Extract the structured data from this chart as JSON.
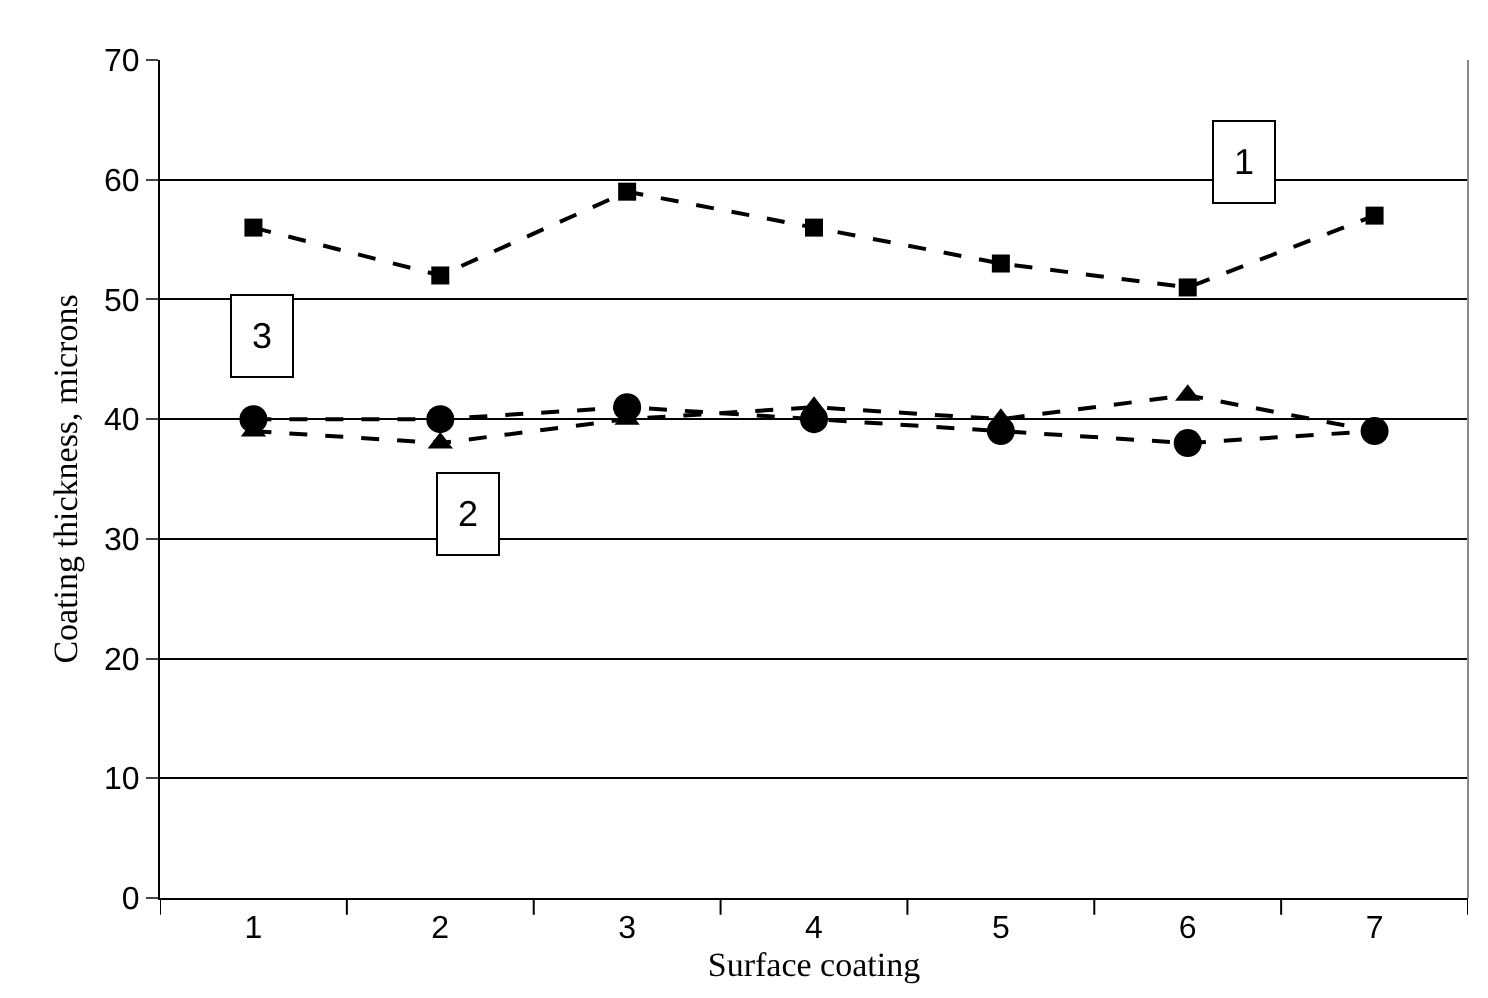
{
  "chart_data": {
    "type": "line",
    "xlabel": "Surface coating",
    "ylabel": "Coating thickness, microns",
    "categories": [
      "1",
      "2",
      "3",
      "4",
      "5",
      "6",
      "7"
    ],
    "series": [
      {
        "name": "1",
        "color": "#000000",
        "marker": "square",
        "values": [
          56,
          52,
          59,
          56,
          53,
          51,
          57
        ]
      },
      {
        "name": "2",
        "color": "#000000",
        "marker": "triangle",
        "values": [
          39,
          38,
          40,
          41,
          40,
          42,
          39
        ]
      },
      {
        "name": "3",
        "color": "#000000",
        "marker": "circle",
        "values": [
          40,
          40,
          41,
          40,
          39,
          38,
          39
        ]
      }
    ],
    "ylim": [
      0,
      70
    ],
    "yticks": [
      0,
      10,
      20,
      30,
      40,
      50,
      60,
      70
    ],
    "grid": "y",
    "legend": false,
    "line_style": "dashed"
  }
}
